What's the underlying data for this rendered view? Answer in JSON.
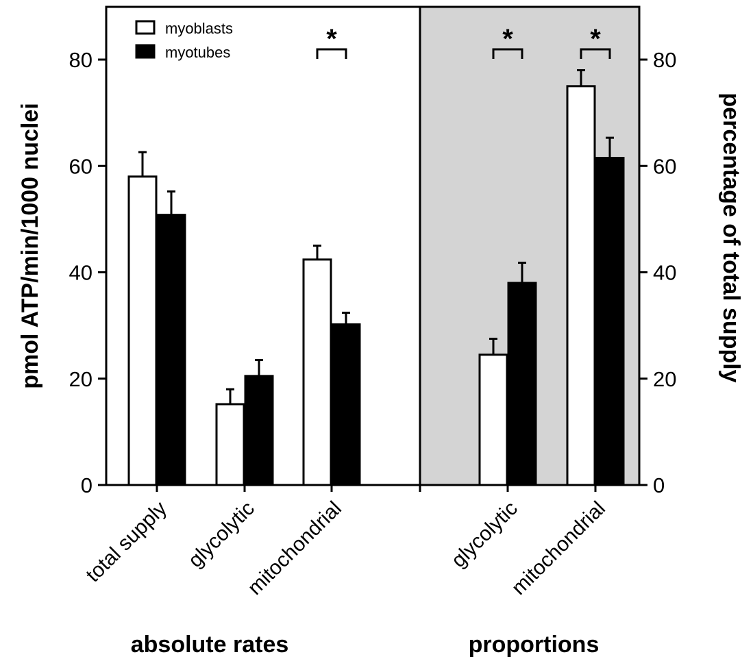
{
  "chart_data": {
    "type": "bar",
    "y_left_label": "pmol ATP/min/1000 nuclei",
    "y_right_label": "percentage of total supply",
    "ylim": [
      0,
      80
    ],
    "yticks": [
      "0",
      "20",
      "40",
      "60",
      "80"
    ],
    "grid": false,
    "legend_position": "top-left",
    "series": [
      {
        "name": "myoblasts",
        "fill": "#ffffff",
        "stroke": "#000000"
      },
      {
        "name": "myotubes",
        "fill": "#000000",
        "stroke": "#000000"
      }
    ],
    "groups": [
      {
        "title": "absolute rates",
        "axis": "left",
        "background": "#ffffff",
        "categories": [
          {
            "label": "total supply",
            "values": [
              58.0,
              50.8
            ],
            "errors": [
              4.6,
              4.4
            ],
            "significant": false
          },
          {
            "label": "glycolytic",
            "values": [
              15.2,
              20.5
            ],
            "errors": [
              2.8,
              3.0
            ],
            "significant": false
          },
          {
            "label": "mitochondrial",
            "values": [
              42.4,
              30.2
            ],
            "errors": [
              2.6,
              2.2
            ],
            "significant": true
          }
        ]
      },
      {
        "title": "proportions",
        "axis": "right",
        "background": "#d4d4d4",
        "categories": [
          {
            "label": "glycolytic",
            "values": [
              24.5,
              38.0
            ],
            "errors": [
              3.0,
              3.8
            ],
            "significant": true
          },
          {
            "label": "mitochondrial",
            "values": [
              75.0,
              61.5
            ],
            "errors": [
              3.0,
              3.8
            ],
            "significant": true
          }
        ]
      }
    ],
    "significance_marker": "*"
  }
}
